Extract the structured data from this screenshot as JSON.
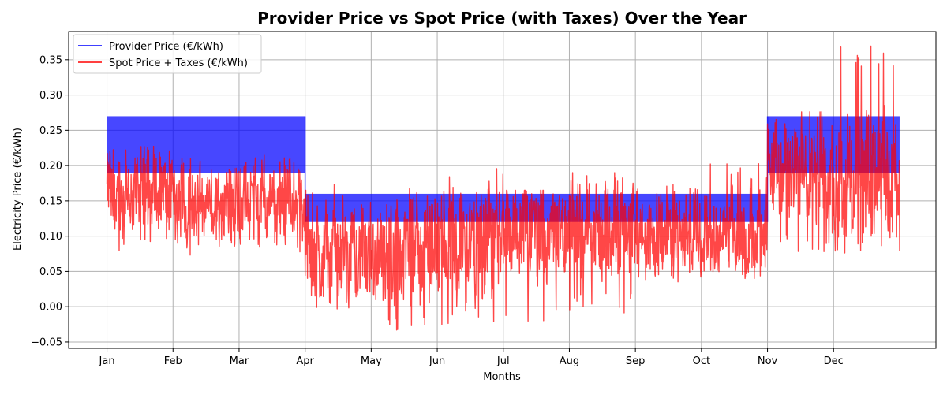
{
  "chart_data": {
    "type": "line",
    "title": "Provider Price vs Spot Price (with Taxes) Over the Year",
    "xlabel": "Months",
    "ylabel": "Electricity Price (€/kWh)",
    "x_ticks": [
      "Jan",
      "Feb",
      "Mar",
      "Apr",
      "May",
      "Jun",
      "Jul",
      "Aug",
      "Sep",
      "Oct",
      "Nov",
      "Dec"
    ],
    "x_tick_positions_months": [
      0,
      1,
      2,
      3,
      4,
      5,
      6,
      7,
      8,
      9,
      10,
      11
    ],
    "xlim_months": [
      -0.58,
      12.55
    ],
    "ylim": [
      -0.059,
      0.39
    ],
    "y_ticks": [
      -0.05,
      0.0,
      0.05,
      0.1,
      0.15,
      0.2,
      0.25,
      0.3,
      0.35
    ],
    "y_tick_labels": [
      "−0.05",
      "0.00",
      "0.05",
      "0.10",
      "0.15",
      "0.20",
      "0.25",
      "0.30",
      "0.35"
    ],
    "grid": true,
    "legend_position": "top-left",
    "series": [
      {
        "name": "Provider Price (€/kWh)",
        "color": "#0000ff",
        "style": "band",
        "segments": [
          {
            "start_month": 0,
            "end_month": 3,
            "low": 0.19,
            "high": 0.27
          },
          {
            "start_month": 3,
            "end_month": 10,
            "low": 0.12,
            "high": 0.16
          },
          {
            "start_month": 10,
            "end_month": 12,
            "low": 0.19,
            "high": 0.27
          }
        ]
      },
      {
        "name": "Spot Price + Taxes (€/kWh)",
        "color": "#ff0000",
        "style": "noisy-line",
        "monthly_profile": [
          {
            "month": "Jan",
            "mean": 0.16,
            "low": 0.07,
            "high": 0.23
          },
          {
            "month": "Feb",
            "mean": 0.145,
            "low": 0.07,
            "high": 0.21
          },
          {
            "month": "Mar",
            "mean": 0.15,
            "low": 0.075,
            "high": 0.215
          },
          {
            "month": "Apr",
            "mean": 0.075,
            "low": -0.005,
            "high": 0.18
          },
          {
            "month": "May",
            "mean": 0.08,
            "low": -0.04,
            "high": 0.17
          },
          {
            "month": "Jun",
            "mean": 0.09,
            "low": -0.03,
            "high": 0.205
          },
          {
            "month": "Jul",
            "mean": 0.11,
            "low": -0.025,
            "high": 0.165
          },
          {
            "month": "Aug",
            "mean": 0.11,
            "low": -0.01,
            "high": 0.19
          },
          {
            "month": "Sep",
            "mean": 0.1,
            "low": 0.035,
            "high": 0.175
          },
          {
            "month": "Oct",
            "mean": 0.1,
            "low": 0.04,
            "high": 0.21
          },
          {
            "month": "Nov",
            "mean": 0.19,
            "low": 0.075,
            "high": 0.28
          },
          {
            "month": "Dec",
            "mean": 0.18,
            "low": 0.075,
            "high": 0.37
          }
        ]
      }
    ]
  }
}
